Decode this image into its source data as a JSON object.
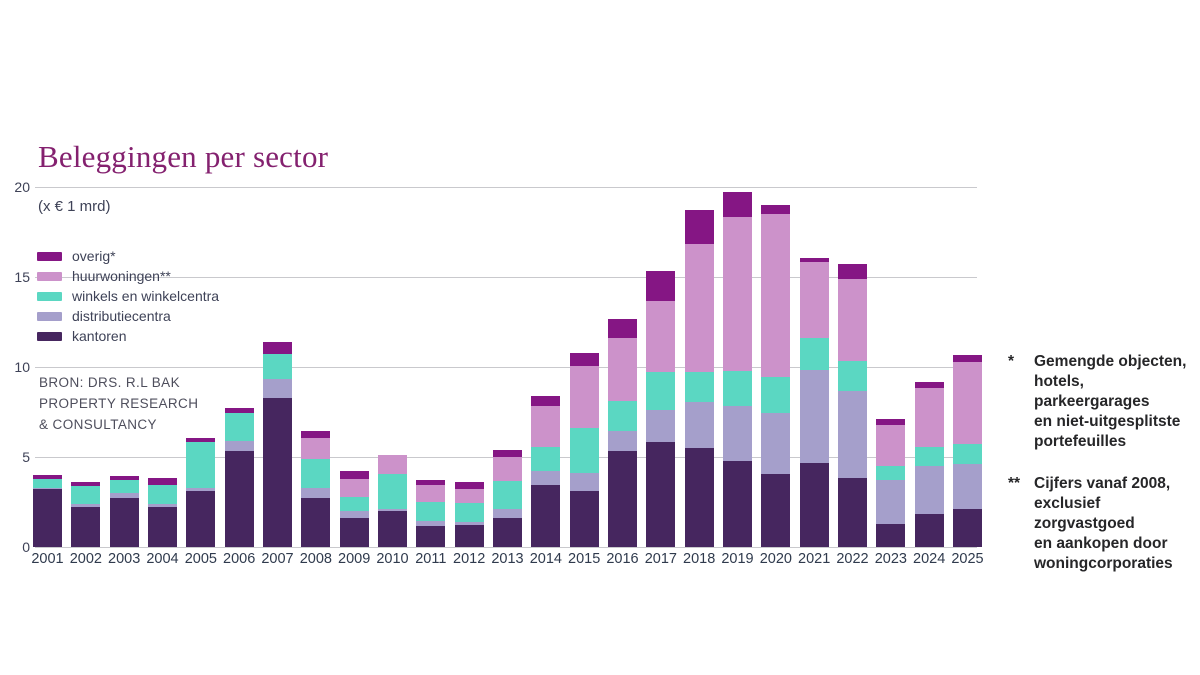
{
  "title": "Beleggingen per sector",
  "unit_label": "(x € 1 mrd)",
  "source_lines": [
    "BRON: DRS. R.L BAK",
    "PROPERTY RESEARCH",
    "& CONSULTANCY"
  ],
  "footnotes": [
    {
      "marker": "*",
      "lines": [
        "Gemengde objecten,",
        "hotels, parkeergarages",
        "en niet-uitgesplitste",
        "portefeuilles"
      ]
    },
    {
      "marker": "**",
      "lines": [
        "Cijfers vanaf 2008,",
        "exclusief zorgvastgoed",
        "en aankopen door",
        "woningcorporaties"
      ]
    }
  ],
  "colors": {
    "title_text": "#84216F",
    "body_text": "#3E4257",
    "axis_label_text": "#2F3A4D",
    "gridline": "#C9C9CD",
    "source_text": "#4E4E5C",
    "footnote_text": "#262628",
    "background": "#FFFFFF"
  },
  "chart_data": {
    "type": "bar",
    "stacked": true,
    "title": "Beleggingen per sector",
    "ylabel": "(x € 1 mrd)",
    "ylim": [
      0,
      20
    ],
    "yticks": [
      0,
      5,
      10,
      15,
      20
    ],
    "grid": "horizontal",
    "legend_position": "upper-left-inside",
    "categories": [
      2001,
      2002,
      2003,
      2004,
      2005,
      2006,
      2007,
      2008,
      2009,
      2010,
      2011,
      2012,
      2013,
      2014,
      2015,
      2016,
      2017,
      2018,
      2019,
      2020,
      2021,
      2022,
      2023,
      2024,
      2025
    ],
    "series": [
      {
        "key": "kantoren",
        "legend_label": "kantoren",
        "color": "#46265F",
        "values": [
          3.2,
          2.2,
          2.7,
          2.25,
          3.1,
          5.35,
          8.3,
          2.75,
          1.6,
          2.0,
          1.15,
          1.2,
          1.6,
          3.45,
          3.1,
          5.35,
          5.85,
          5.5,
          4.8,
          4.05,
          4.65,
          3.85,
          1.3,
          1.85,
          2.1
        ]
      },
      {
        "key": "distributiecentra",
        "legend_label": "distributiecentra",
        "color": "#A59FCB",
        "values": [
          0.1,
          0.2,
          0.3,
          0.15,
          0.2,
          0.55,
          1.05,
          0.55,
          0.4,
          0.1,
          0.3,
          0.2,
          0.5,
          0.75,
          1.0,
          1.1,
          1.75,
          2.55,
          3.05,
          3.4,
          5.2,
          4.8,
          2.4,
          2.65,
          2.5
        ]
      },
      {
        "key": "winkels-en-winkelcentra",
        "legend_label": "winkels en winkelcentra",
        "color": "#5BD7C2",
        "values": [
          0.5,
          1.0,
          0.75,
          1.05,
          2.55,
          1.55,
          1.35,
          1.6,
          0.8,
          1.95,
          1.05,
          1.05,
          1.55,
          1.35,
          2.5,
          1.65,
          2.1,
          1.7,
          1.95,
          2.0,
          1.75,
          1.7,
          0.8,
          1.05,
          1.15
        ]
      },
      {
        "key": "huurwoningen",
        "legend_label": "huurwoningen**",
        "color": "#CC92CA",
        "values": [
          0,
          0,
          0,
          0,
          0,
          0,
          0,
          1.15,
          1.0,
          1.05,
          0.95,
          0.8,
          1.35,
          2.3,
          3.45,
          3.5,
          3.95,
          7.1,
          8.55,
          9.05,
          4.25,
          4.55,
          2.3,
          3.3,
          4.55
        ]
      },
      {
        "key": "overig",
        "legend_label": "overig*",
        "color": "#851684",
        "values": [
          0.2,
          0.2,
          0.2,
          0.4,
          0.2,
          0.25,
          0.7,
          0.4,
          0.45,
          0,
          0.3,
          0.35,
          0.4,
          0.55,
          0.75,
          1.05,
          1.7,
          1.9,
          1.4,
          0.5,
          0.2,
          0.85,
          0.3,
          0.3,
          0.35
        ]
      }
    ]
  }
}
